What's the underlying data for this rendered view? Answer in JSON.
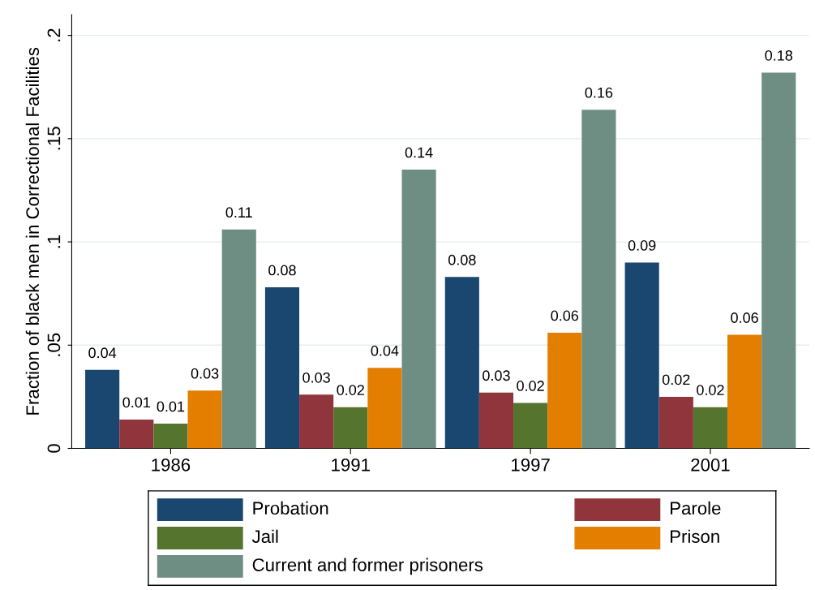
{
  "chart_data": {
    "type": "bar",
    "ylabel": "Fraction of black men in Correctional Facilities",
    "categories": [
      "1986",
      "1991",
      "1997",
      "2001"
    ],
    "series": [
      {
        "name": "Probation",
        "color": "#1a476f",
        "values": [
          0.038,
          0.078,
          0.083,
          0.09
        ],
        "value_labels": [
          "0.04",
          "0.08",
          "0.08",
          "0.09"
        ]
      },
      {
        "name": "Parole",
        "color": "#90353b",
        "values": [
          0.014,
          0.026,
          0.027,
          0.025
        ],
        "value_labels": [
          "0.01",
          "0.03",
          "0.03",
          "0.02"
        ]
      },
      {
        "name": "Jail",
        "color": "#55752f",
        "values": [
          0.012,
          0.02,
          0.022,
          0.02
        ],
        "value_labels": [
          "0.01",
          "0.02",
          "0.02",
          "0.02"
        ]
      },
      {
        "name": "Prison",
        "color": "#e37e00",
        "values": [
          0.028,
          0.039,
          0.056,
          0.055
        ],
        "value_labels": [
          "0.03",
          "0.04",
          "0.06",
          "0.06"
        ]
      },
      {
        "name": "Current and former prisoners",
        "color": "#6e8e84",
        "values": [
          0.106,
          0.135,
          0.164,
          0.182
        ],
        "value_labels": [
          "0.11",
          "0.14",
          "0.16",
          "0.18"
        ]
      }
    ],
    "ylim": [
      0,
      0.21
    ],
    "yticks": [
      {
        "value": 0,
        "label": "0"
      },
      {
        "value": 0.05,
        "label": ".05"
      },
      {
        "value": 0.1,
        "label": ".1"
      },
      {
        "value": 0.15,
        "label": ".15"
      },
      {
        "value": 0.2,
        "label": ".2"
      }
    ],
    "grid": "y",
    "legend": "bottom"
  }
}
